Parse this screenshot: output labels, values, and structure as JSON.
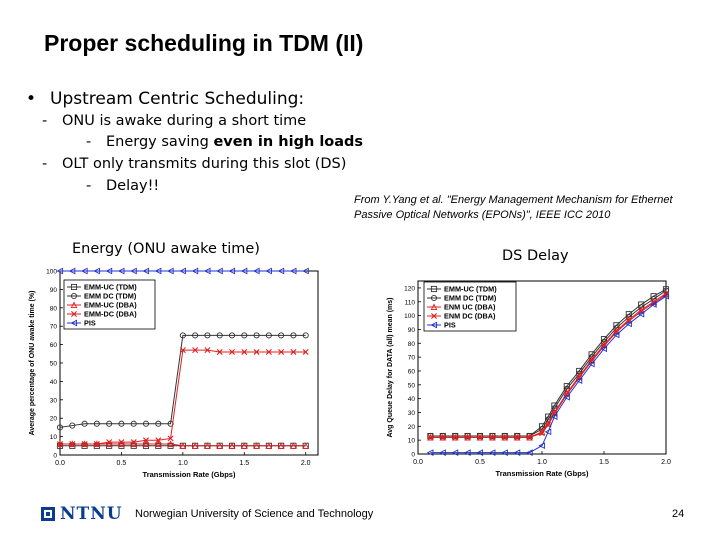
{
  "slide": {
    "title": "Proper scheduling in TDM (II)",
    "bullet_main": "Upstream Centric Scheduling:",
    "sub1": "ONU is awake during a short time",
    "sub1a_prefix": "Energy saving ",
    "sub1a_bold": "even in high loads",
    "sub2": "OLT only transmits during this slot (DS)",
    "sub2a": "Delay!!",
    "citation_line1": "From Y.Yang et al. \"Energy Management Mechanism for Ethernet",
    "citation_line2": "Passive Optical Networks (EPONs)\", IEEE ICC 2010",
    "energy_caption": "Energy  (ONU awake time)",
    "delay_caption": "DS Delay",
    "footer_org": "NTNU",
    "footer_text": "Norwegian University of Science and Technology",
    "page_number": "24"
  },
  "chart_data": [
    {
      "type": "line",
      "ylabel": "Average percentage of ONU awake time (%)",
      "xlabel": "Transmission Rate (Gbps)",
      "xlim": [
        0.0,
        2.1
      ],
      "ylim": [
        0,
        100
      ],
      "xticks": [
        "0.0",
        "0.5",
        "1.0",
        "1.5",
        "2.0"
      ],
      "yticks": [
        "0",
        "10",
        "20",
        "30",
        "40",
        "50",
        "60",
        "70",
        "80",
        "90",
        "100"
      ],
      "legend_position": "top-left",
      "x": [
        0.0,
        0.1,
        0.2,
        0.3,
        0.4,
        0.5,
        0.6,
        0.7,
        0.8,
        0.9,
        1.0,
        1.1,
        1.2,
        1.3,
        1.4,
        1.5,
        1.6,
        1.7,
        1.8,
        1.9,
        2.0
      ],
      "series": [
        {
          "name": "EMM-UC (TDM)",
          "marker": "square",
          "color": "#333333",
          "values": [
            5,
            5,
            5,
            5,
            5,
            5,
            5,
            5,
            5,
            5,
            5,
            5,
            5,
            5,
            5,
            5,
            5,
            5,
            5,
            5,
            5
          ]
        },
        {
          "name": "EMM DC (TDM)",
          "marker": "circle",
          "color": "#333333",
          "values": [
            15,
            16,
            17,
            17,
            17,
            17,
            17,
            17,
            17,
            17,
            65,
            65,
            65,
            65,
            65,
            65,
            65,
            65,
            65,
            65,
            65
          ]
        },
        {
          "name": "EMM-UC (DBA)",
          "marker": "triangle",
          "color": "#e02020",
          "values": [
            6,
            6,
            6,
            6,
            6,
            6,
            6,
            6,
            6,
            6,
            5,
            5,
            5,
            5,
            5,
            5,
            5,
            5,
            5,
            5,
            5
          ]
        },
        {
          "name": "EMM-DC (DBA)",
          "marker": "x",
          "color": "#e02020",
          "values": [
            6,
            6,
            6,
            6,
            7,
            7,
            7,
            8,
            8,
            9,
            57,
            57,
            57,
            56,
            56,
            56,
            56,
            56,
            56,
            56,
            56
          ]
        },
        {
          "name": "PIS",
          "marker": "tri-left",
          "color": "#2233cc",
          "values": [
            100,
            100,
            100,
            100,
            100,
            100,
            100,
            100,
            100,
            100,
            100,
            100,
            100,
            100,
            100,
            100,
            100,
            100,
            100,
            100,
            100
          ]
        }
      ]
    },
    {
      "type": "line",
      "ylabel": "Avg Queue Delay for DATA (all) mean (ms)",
      "xlabel": "Transmission Rate (Gbps)",
      "xlim": [
        0.0,
        2.0
      ],
      "ylim": [
        0,
        125
      ],
      "xticks": [
        "0.0",
        "0.5",
        "1.0",
        "1.5",
        "2.0"
      ],
      "yticks": [
        "0",
        "10",
        "20",
        "30",
        "40",
        "50",
        "60",
        "70",
        "80",
        "90",
        "100",
        "110",
        "120"
      ],
      "legend_position": "top-left",
      "x": [
        0.1,
        0.2,
        0.3,
        0.4,
        0.5,
        0.6,
        0.7,
        0.8,
        0.9,
        1.0,
        1.05,
        1.1,
        1.2,
        1.3,
        1.4,
        1.5,
        1.6,
        1.7,
        1.8,
        1.9,
        2.0
      ],
      "series": [
        {
          "name": "EMM-UC (TDM)",
          "marker": "square",
          "color": "#333333",
          "values": [
            13,
            13,
            13,
            13,
            13,
            13,
            13,
            13,
            13,
            20,
            27,
            35,
            49,
            60,
            72,
            83,
            93,
            101,
            108,
            114,
            119
          ]
        },
        {
          "name": "EMM DC (TDM)",
          "marker": "circle",
          "color": "#333333",
          "values": [
            13,
            13,
            13,
            13,
            13,
            13,
            13,
            13,
            13,
            18,
            25,
            33,
            47,
            58,
            70,
            81,
            91,
            99,
            106,
            112,
            118
          ]
        },
        {
          "name": "ENM UC (DBA)",
          "marker": "triangle",
          "color": "#e02020",
          "values": [
            12,
            12,
            12,
            12,
            12,
            12,
            12,
            12,
            12,
            16,
            22,
            30,
            44,
            56,
            68,
            79,
            89,
            97,
            104,
            110,
            116
          ]
        },
        {
          "name": "ENM DC (DBA)",
          "marker": "x",
          "color": "#e02020",
          "values": [
            12,
            12,
            12,
            12,
            12,
            12,
            12,
            12,
            12,
            15,
            21,
            29,
            43,
            55,
            67,
            78,
            88,
            96,
            103,
            109,
            115
          ]
        },
        {
          "name": "PIS",
          "marker": "tri-left",
          "color": "#2233cc",
          "values": [
            1,
            1,
            1,
            1,
            1,
            1,
            1,
            1,
            1,
            6,
            16,
            27,
            41,
            53,
            65,
            76,
            86,
            94,
            101,
            108,
            114
          ]
        }
      ]
    }
  ]
}
